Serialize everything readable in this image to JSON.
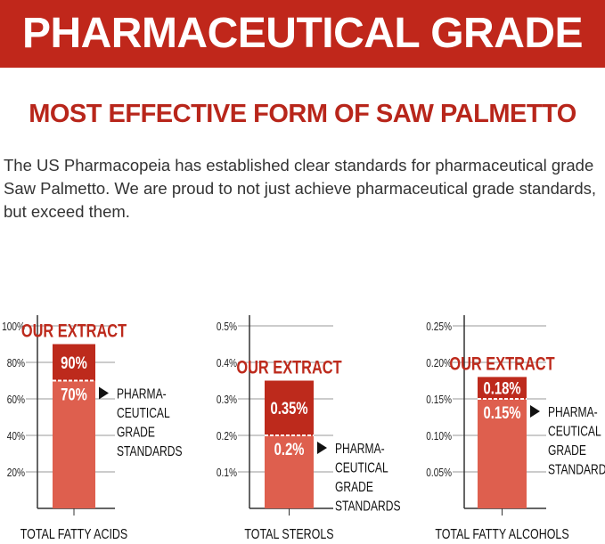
{
  "header": {
    "title": "PHARMACEUTICAL GRADE",
    "subtitle": "MOST EFFECTIVE FORM OF SAW PALMETTO"
  },
  "intro": "The US Pharmacopeia has established clear standards for pharmaceutical grade Saw Palmetto. We are proud to not just achieve pharmaceutical grade standards, but exceed them.",
  "colors": {
    "banner": "#c0271b",
    "extract": "#bd2a1c",
    "standard": "#de5f4e",
    "axis": "#333333",
    "grid": "#999999"
  },
  "chart_data": [
    {
      "type": "bar",
      "xlabel": "TOTAL FATTY ACIDS",
      "ylim": [
        0,
        100
      ],
      "ticks": [
        "20%",
        "40%",
        "60%",
        "80%",
        "100%"
      ],
      "tick_values": [
        20,
        40,
        60,
        80,
        100
      ],
      "series": [
        {
          "name": "OUR EXTRACT",
          "value": 90,
          "label": "90%"
        },
        {
          "name": "PHARMA-CEUTICAL GRADE STANDARDS",
          "value": 70,
          "label": "70%"
        }
      ],
      "annotation": [
        "PHARMA-",
        "CEUTICAL",
        "GRADE",
        "STANDARDS"
      ],
      "extract_label": "OUR EXTRACT",
      "grid": true
    },
    {
      "type": "bar",
      "xlabel": "TOTAL STEROLS",
      "ylim": [
        0,
        0.5
      ],
      "ticks": [
        "0.1%",
        "0.2%",
        "0.3%",
        "0.4%",
        "0.5%"
      ],
      "tick_values": [
        0.1,
        0.2,
        0.3,
        0.4,
        0.5
      ],
      "series": [
        {
          "name": "OUR EXTRACT",
          "value": 0.35,
          "label": "0.35%"
        },
        {
          "name": "PHARMA-CEUTICAL GRADE STANDARDS",
          "value": 0.2,
          "label": "0.2%"
        }
      ],
      "annotation": [
        "PHARMA-",
        "CEUTICAL",
        "GRADE",
        "STANDARDS"
      ],
      "extract_label": "OUR EXTRACT",
      "grid": true
    },
    {
      "type": "bar",
      "xlabel": "TOTAL FATTY ALCOHOLS",
      "ylim": [
        0,
        0.25
      ],
      "ticks": [
        "0.05%",
        "0.10%",
        "0.15%",
        "0.20%",
        "0.25%"
      ],
      "tick_values": [
        0.05,
        0.1,
        0.15,
        0.2,
        0.25
      ],
      "series": [
        {
          "name": "OUR EXTRACT",
          "value": 0.18,
          "label": "0.18%"
        },
        {
          "name": "PHARMA-CEUTICAL GRADE STANDARDS",
          "value": 0.15,
          "label": "0.15%"
        }
      ],
      "annotation": [
        "PHARMA-",
        "CEUTICAL",
        "GRADE",
        "STANDARDS"
      ],
      "extract_label": "OUR EXTRACT",
      "grid": true
    }
  ]
}
